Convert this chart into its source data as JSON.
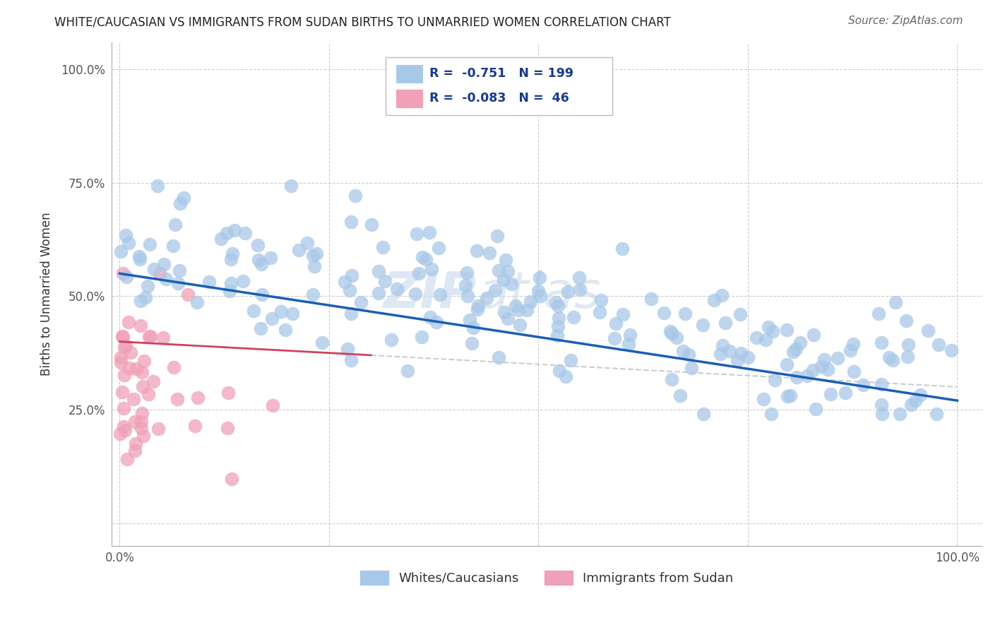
{
  "title": "WHITE/CAUCASIAN VS IMMIGRANTS FROM SUDAN BIRTHS TO UNMARRIED WOMEN CORRELATION CHART",
  "source": "Source: ZipAtlas.com",
  "ylabel": "Births to Unmarried Women",
  "xlabel": "",
  "r_white": -0.751,
  "n_white": 199,
  "r_sudan": -0.083,
  "n_sudan": 46,
  "white_color": "#a8c8e8",
  "sudan_color": "#f0a0b8",
  "white_line_color": "#1a5fb4",
  "sudan_line_color": "#d04060",
  "watermark_zip": "ZIP",
  "watermark_atlas": "atlas",
  "legend_labels": [
    "Whites/Caucasians",
    "Immigrants from Sudan"
  ],
  "xlim": [
    0.0,
    1.0
  ],
  "ylim": [
    0.0,
    1.0
  ],
  "x_tick_positions": [
    0.0,
    0.25,
    0.5,
    0.75,
    1.0
  ],
  "y_tick_positions": [
    0.0,
    0.25,
    0.5,
    0.75,
    1.0
  ],
  "x_tick_labels": [
    "0.0%",
    "",
    "",
    "",
    "100.0%"
  ],
  "y_tick_labels": [
    "",
    "25.0%",
    "50.0%",
    "75.0%",
    "100.0%"
  ],
  "background_color": "#ffffff",
  "grid_color": "#cccccc"
}
